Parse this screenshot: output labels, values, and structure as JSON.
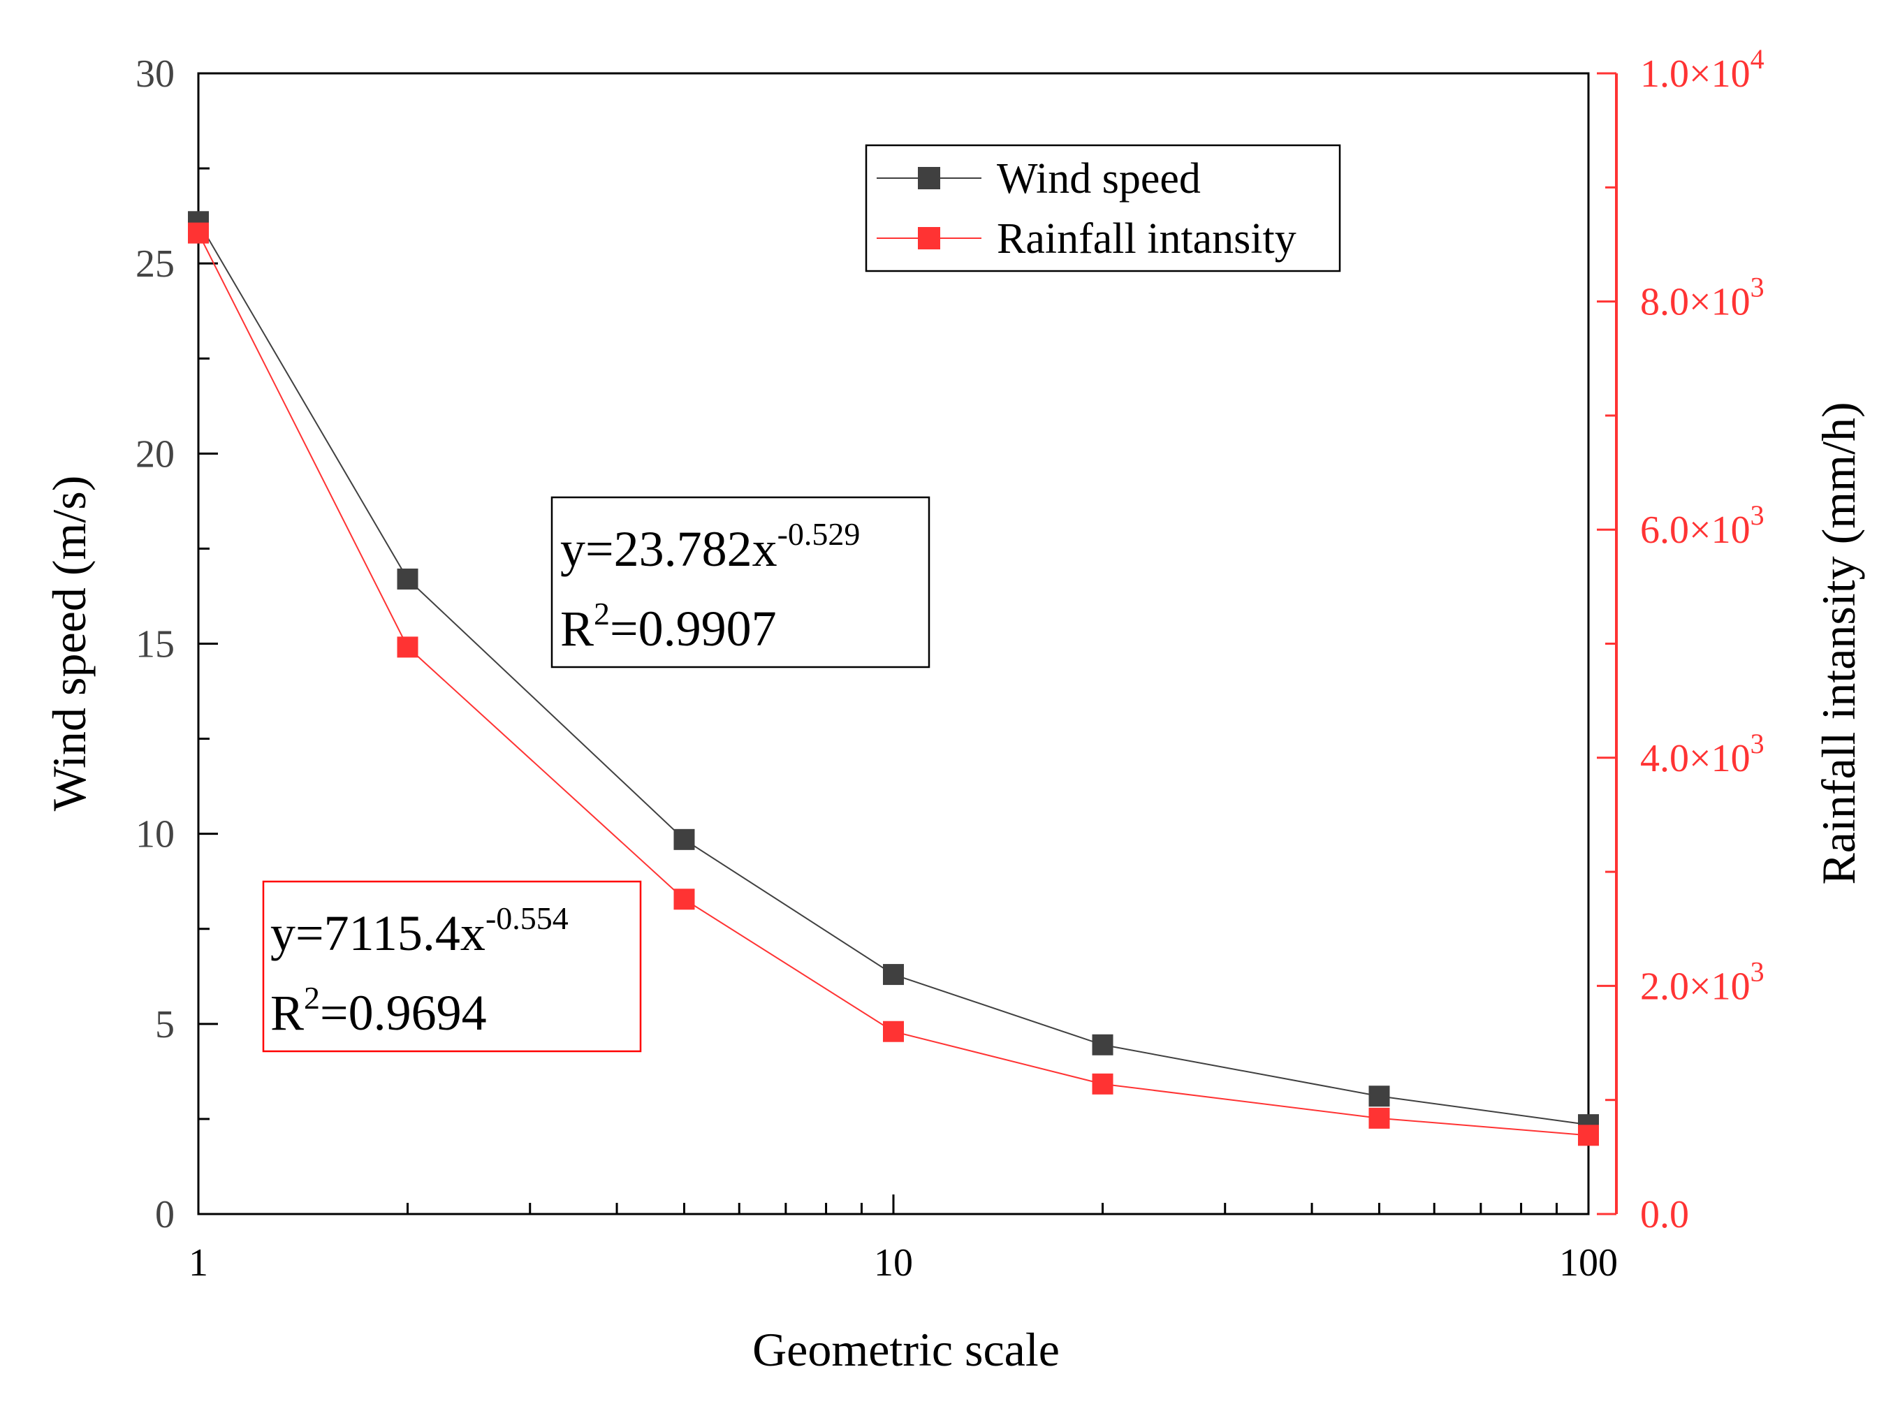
{
  "chart_data": {
    "type": "line",
    "xscale": "log",
    "xlabel": "Geometric scale",
    "ylabel": "Wind speed (m/s)",
    "y2label": "Rainfall intansity (mm/h)",
    "xlim": [
      1,
      100
    ],
    "ylim": [
      0,
      30
    ],
    "y2lim": [
      0,
      10000
    ],
    "x_ticks": [
      1,
      10,
      100
    ],
    "x_tick_labels": [
      "1",
      "10",
      "100"
    ],
    "y_ticks": [
      0,
      5,
      10,
      15,
      20,
      25,
      30
    ],
    "y_tick_labels": [
      "0",
      "5",
      "10",
      "15",
      "20",
      "25",
      "30"
    ],
    "y2_ticks": [
      0,
      2000,
      4000,
      6000,
      8000,
      10000
    ],
    "y2_tick_labels": [
      {
        "mantissa": "0.0",
        "exp": ""
      },
      {
        "mantissa": "2.0×10",
        "exp": "3"
      },
      {
        "mantissa": "4.0×10",
        "exp": "3"
      },
      {
        "mantissa": "6.0×10",
        "exp": "3"
      },
      {
        "mantissa": "8.0×10",
        "exp": "3"
      },
      {
        "mantissa": "1.0×10",
        "exp": "4"
      }
    ],
    "x": [
      1,
      2,
      5,
      10,
      20,
      50,
      100
    ],
    "series": [
      {
        "name": "Wind speed",
        "axis": "left",
        "color": "#404040",
        "marker": "square",
        "values": [
          26.1,
          16.7,
          9.85,
          6.3,
          4.45,
          3.1,
          2.35
        ]
      },
      {
        "name": "Rainfall intansity",
        "axis": "right",
        "color": "#ff3333",
        "marker": "square",
        "values": [
          8600,
          4970,
          2760,
          1600,
          1140,
          840,
          690
        ]
      }
    ],
    "legend": {
      "position": "top-center",
      "entries": [
        "Wind speed",
        "Rainfall intansity"
      ]
    },
    "annotations": [
      {
        "name": "wind-fit",
        "text": "y=23.782x",
        "exp": "-0.529",
        "r2_prefix": "R",
        "r2_exp": "2",
        "r2_value": "=0.9907",
        "border_color": "#000000"
      },
      {
        "name": "rain-fit",
        "text": "y=7115.4x",
        "exp": "-0.554",
        "r2_prefix": "R",
        "r2_exp": "2",
        "r2_value": "=0.9694",
        "border_color": "#ff0000"
      }
    ]
  }
}
